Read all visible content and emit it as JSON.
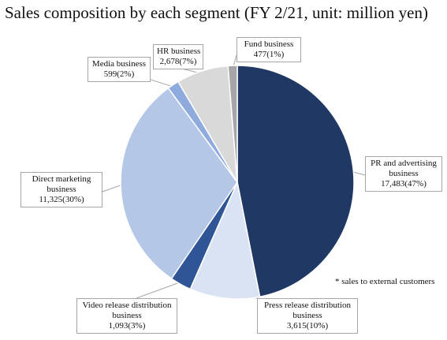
{
  "chart_data": {
    "type": "pie",
    "title": "Sales composition by each segment (FY 2/21, unit: million yen)",
    "footnote": "* sales to external customers",
    "slices": [
      {
        "name": "PR and advertising business",
        "value": 17483,
        "value_text": "17,483(47%)",
        "label_lines": [
          "PR and advertising",
          "business"
        ],
        "color": "#203864"
      },
      {
        "name": "Press release distribution business",
        "value": 3615,
        "value_text": "3,615(10%)",
        "label_lines": [
          "Press release distribution",
          "business"
        ],
        "color": "#dae3f3"
      },
      {
        "name": "Video release distribution business",
        "value": 1093,
        "value_text": "1,093(3%)",
        "label_lines": [
          "Video release distribution",
          "business"
        ],
        "color": "#2f5597"
      },
      {
        "name": "Direct marketing business",
        "value": 11325,
        "value_text": "11,325(30%)",
        "label_lines": [
          "Direct marketing",
          "business"
        ],
        "color": "#b4c7e7"
      },
      {
        "name": "Media business",
        "value": 599,
        "value_text": "599(2%)",
        "label_lines": [
          "Media business"
        ],
        "color": "#8faadc"
      },
      {
        "name": "HR business",
        "value": 2678,
        "value_text": "2,678(7%)",
        "label_lines": [
          "HR business"
        ],
        "color": "#d9d9d9"
      },
      {
        "name": "Fund business",
        "value": 477,
        "value_text": "477(1%)",
        "label_lines": [
          "Fund business"
        ],
        "color": "#a6a6a6"
      }
    ]
  }
}
